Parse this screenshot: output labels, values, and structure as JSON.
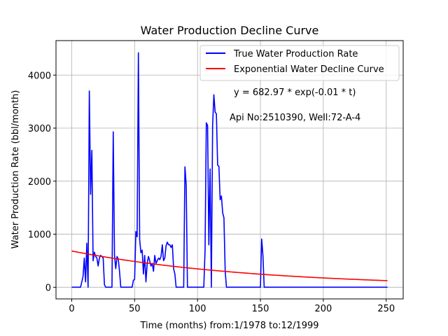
{
  "chart_data": {
    "type": "line",
    "title": "Water Production Decline Curve",
    "xlabel": "Time (months) from:1/1978 to:12/1999",
    "ylabel": "Water Production Rate (bbl/month)",
    "xlim": [
      -12.5,
      263.5
    ],
    "ylim": [
      -220,
      4650
    ],
    "grid": true,
    "legend_position": "upper right",
    "x_ticks": [
      0,
      50,
      100,
      150,
      200,
      250
    ],
    "y_ticks": [
      0,
      1000,
      2000,
      3000,
      4000
    ],
    "annotations": [
      "y = 682.97 * exp(-0.01 * t)",
      "Api No:2510390, Well:72-A-4"
    ],
    "series": [
      {
        "name": "True Water Production Rate",
        "color": "#0000ff",
        "points": [
          [
            0,
            0
          ],
          [
            7,
            0
          ],
          [
            8,
            100
          ],
          [
            9,
            200
          ],
          [
            10,
            550
          ],
          [
            11,
            100
          ],
          [
            12,
            830
          ],
          [
            13,
            0
          ],
          [
            14,
            3700
          ],
          [
            15,
            1750
          ],
          [
            16,
            2580
          ],
          [
            17,
            500
          ],
          [
            18,
            660
          ],
          [
            19,
            580
          ],
          [
            20,
            550
          ],
          [
            21,
            400
          ],
          [
            22,
            550
          ],
          [
            23,
            600
          ],
          [
            24,
            580
          ],
          [
            25,
            550
          ],
          [
            26,
            50
          ],
          [
            27,
            0
          ],
          [
            28,
            0
          ],
          [
            32,
            0
          ],
          [
            33,
            2930
          ],
          [
            34,
            600
          ],
          [
            35,
            350
          ],
          [
            36,
            580
          ],
          [
            37,
            530
          ],
          [
            38,
            300
          ],
          [
            39,
            0
          ],
          [
            40,
            0
          ],
          [
            48,
            0
          ],
          [
            49,
            130
          ],
          [
            50,
            150
          ],
          [
            51,
            1050
          ],
          [
            52,
            950
          ],
          [
            53,
            4420
          ],
          [
            54,
            900
          ],
          [
            55,
            650
          ],
          [
            56,
            700
          ],
          [
            57,
            250
          ],
          [
            58,
            600
          ],
          [
            59,
            100
          ],
          [
            60,
            450
          ],
          [
            61,
            580
          ],
          [
            62,
            500
          ],
          [
            63,
            400
          ],
          [
            64,
            450
          ],
          [
            65,
            300
          ],
          [
            66,
            600
          ],
          [
            67,
            450
          ],
          [
            68,
            500
          ],
          [
            69,
            550
          ],
          [
            70,
            520
          ],
          [
            71,
            580
          ],
          [
            72,
            800
          ],
          [
            73,
            500
          ],
          [
            74,
            550
          ],
          [
            75,
            780
          ],
          [
            76,
            850
          ],
          [
            77,
            800
          ],
          [
            78,
            800
          ],
          [
            79,
            750
          ],
          [
            80,
            800
          ],
          [
            81,
            350
          ],
          [
            82,
            250
          ],
          [
            83,
            0
          ],
          [
            84,
            0
          ],
          [
            89,
            0
          ],
          [
            90,
            2270
          ],
          [
            91,
            1930
          ],
          [
            92,
            0
          ],
          [
            93,
            0
          ],
          [
            105,
            0
          ],
          [
            106,
            700
          ],
          [
            107,
            3100
          ],
          [
            108,
            3050
          ],
          [
            109,
            800
          ],
          [
            110,
            2230
          ],
          [
            111,
            0
          ],
          [
            112,
            3050
          ],
          [
            113,
            3630
          ],
          [
            114,
            3300
          ],
          [
            115,
            3270
          ],
          [
            116,
            2300
          ],
          [
            117,
            2280
          ],
          [
            118,
            1650
          ],
          [
            119,
            1720
          ],
          [
            120,
            1400
          ],
          [
            121,
            1310
          ],
          [
            122,
            300
          ],
          [
            123,
            0
          ],
          [
            124,
            0
          ],
          [
            150,
            0
          ],
          [
            151,
            910
          ],
          [
            152,
            600
          ],
          [
            153,
            0
          ],
          [
            154,
            0
          ],
          [
            251,
            0
          ]
        ]
      },
      {
        "name": "Exponential Water Decline Curve",
        "color": "#ff0000",
        "model": {
          "a": 682.97,
          "b": 0.0068
        },
        "x_range": [
          0,
          251
        ]
      }
    ]
  }
}
